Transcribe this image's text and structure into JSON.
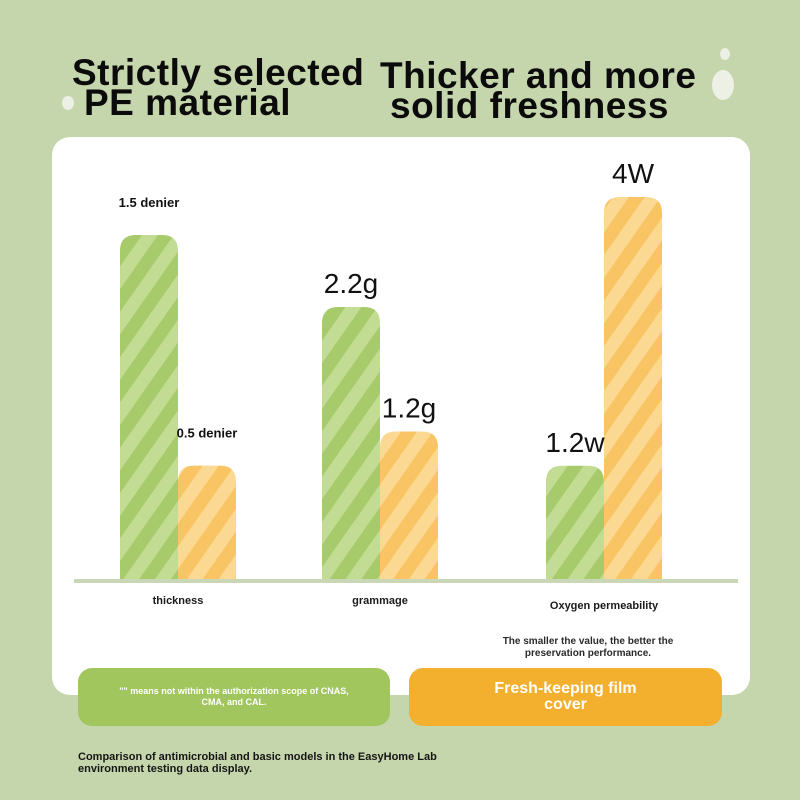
{
  "header": {
    "left_title_line1": "Strictly selected",
    "left_title_line2": "PE material",
    "right_title_line1": "Thicker and more",
    "right_title_line2": "solid freshness"
  },
  "colors": {
    "background": "#c5d5ac",
    "green_bar": "#a7cb6a",
    "orange_bar": "#f9c463",
    "green_button": "#a1c65e",
    "orange_button": "#f3b02f"
  },
  "chart_data": {
    "type": "bar",
    "categories": [
      "thickness",
      "grammage",
      "Oxygen permeability"
    ],
    "series": [
      {
        "values": [
          1.5,
          2.2,
          1.2
        ],
        "labels": [
          "1.5 denier",
          "2.2g",
          "1.2w"
        ],
        "color": "#a7cb6a"
      },
      {
        "values": [
          0.5,
          1.2,
          4.0
        ],
        "labels": [
          "0.5 denier",
          "1.2g",
          "4W"
        ],
        "color": "#f9c463"
      }
    ],
    "bar_style": "rounded-top, diagonal stripes",
    "grid": false
  },
  "note": "The smaller the value, the better the preservation performance.",
  "buttons": {
    "green_text": "\"\" means not within the authorization scope of CNAS, CMA, and CAL.",
    "orange_text": "Fresh-keeping film cover"
  },
  "footer": "Comparison of antimicrobial and basic models in the EasyHome Lab environment testing data display."
}
